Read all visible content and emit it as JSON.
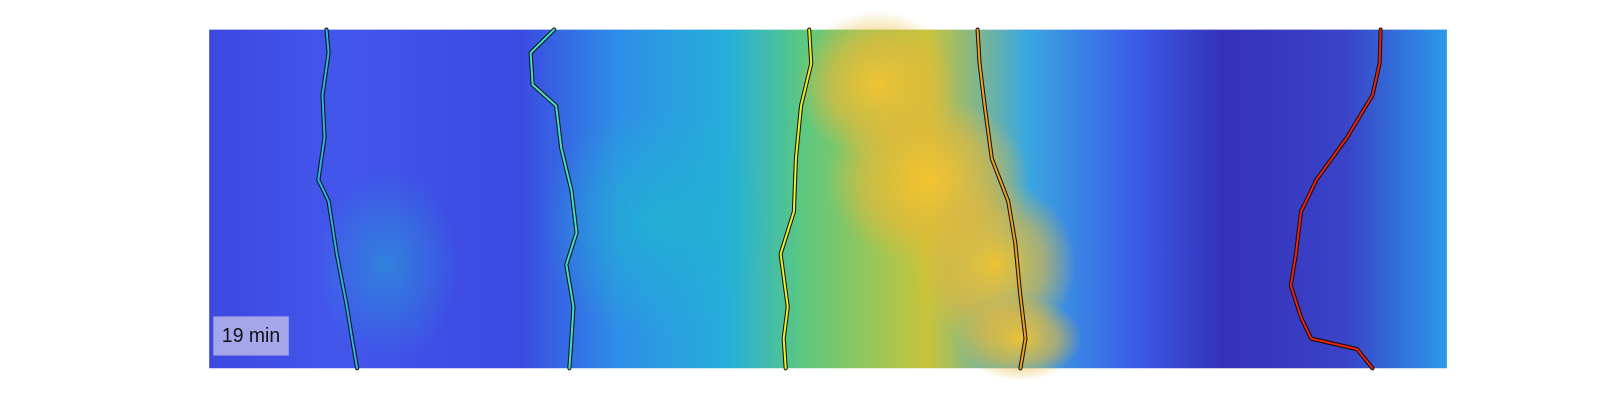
{
  "label": "19 min"
}
